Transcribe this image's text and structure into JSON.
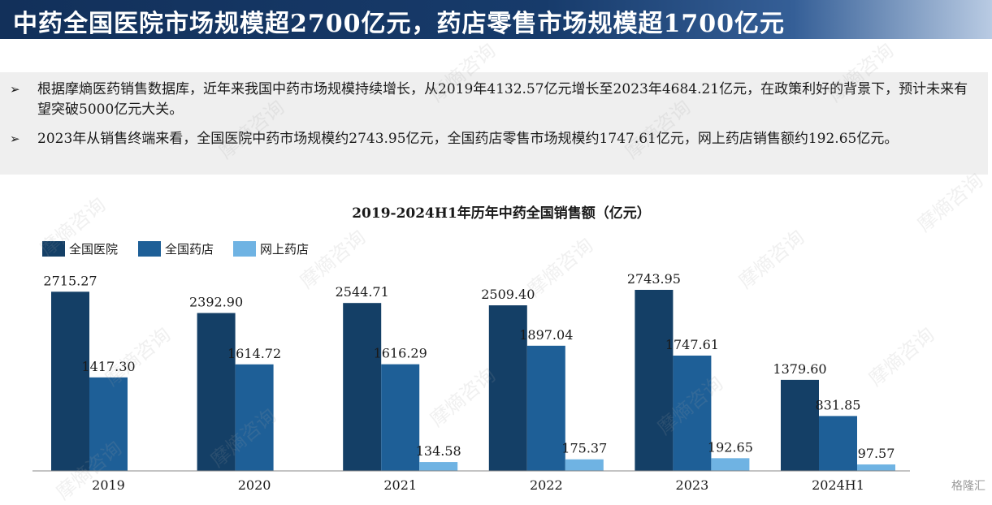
{
  "header": {
    "title": "中药全国医院市场规模超2700亿元，药店零售市场规模超1700亿元"
  },
  "bullets": [
    "根据摩熵医药销售数据库，近年来我国中药市场规模持续增长，从2019年4132.57亿元增长至2023年4684.21亿元，在政策利好的背景下，预计未来有望突破5000亿元大关。",
    "2023年从销售终端来看，全国医院中药市场规模约2743.95亿元，全国药店零售市场规模约1747.61亿元，网上药店销售额约192.65亿元。"
  ],
  "watermark": "摩熵咨询",
  "footer_logo": "格隆汇",
  "colors": {
    "header_bg": "#173b6b",
    "bullet_bg": "#efefef"
  },
  "chart_data": {
    "type": "bar",
    "title": "2019-2024H1年历年中药全国销售额（亿元）",
    "categories": [
      "2019",
      "2020",
      "2021",
      "2022",
      "2023",
      "2024H1"
    ],
    "series": [
      {
        "name": "全国医院",
        "color": "#143f66",
        "values": [
          2715.27,
          2392.9,
          2544.71,
          2509.4,
          2743.95,
          1379.6
        ],
        "labels": [
          "2715.27",
          "2392.90",
          "2544.71",
          "2509.40",
          "2743.95",
          "1379.60"
        ]
      },
      {
        "name": "全国药店",
        "color": "#1e5f97",
        "values": [
          1417.3,
          1614.72,
          1616.29,
          1897.04,
          1747.61,
          831.85
        ],
        "labels": [
          "1417.30",
          "1614.72",
          "1616.29",
          "1897.04",
          "1747.61",
          "831.85"
        ]
      },
      {
        "name": "网上药店",
        "color": "#6fb3e3",
        "values": [
          null,
          null,
          134.58,
          175.37,
          192.65,
          97.57
        ],
        "labels": [
          "",
          "",
          "134.58",
          "175.37",
          "192.65",
          "97.57"
        ]
      }
    ],
    "ylim": [
      0,
      2743.95
    ],
    "legend_position": "top-left",
    "grid": false
  }
}
